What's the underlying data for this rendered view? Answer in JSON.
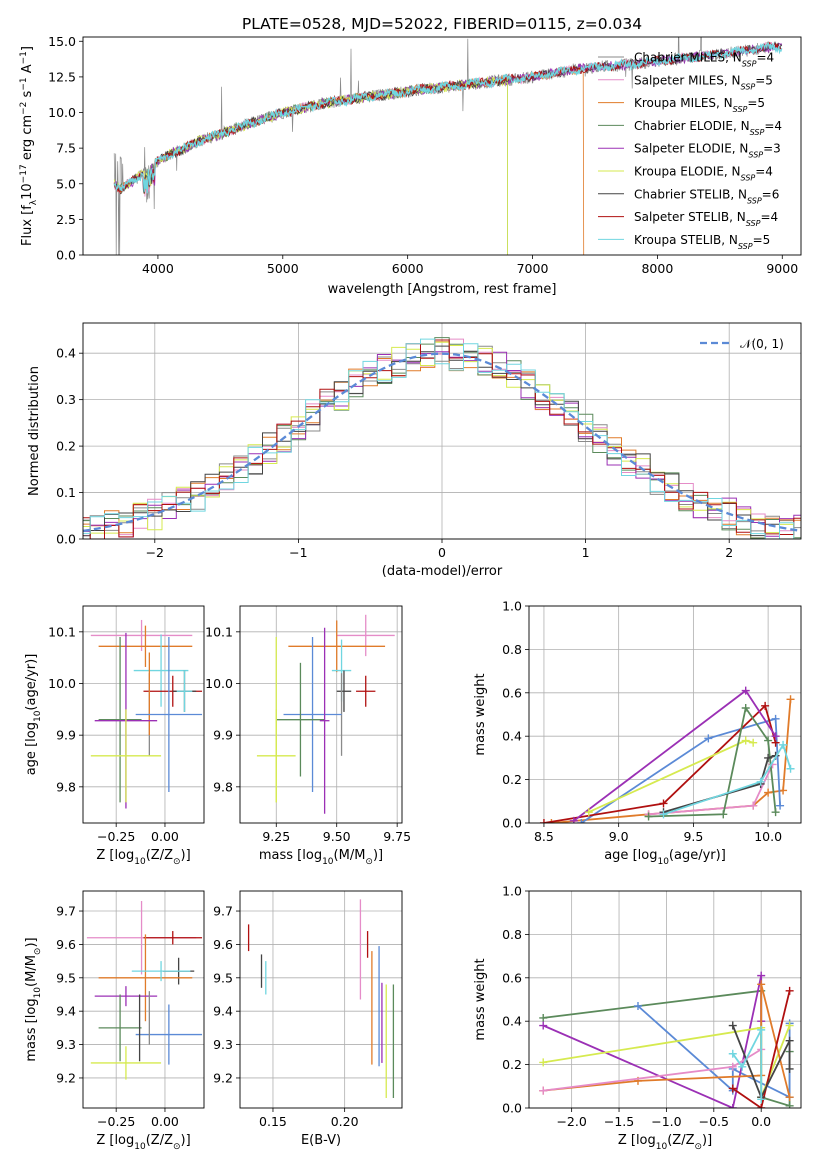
{
  "figure_title": "PLATE=0528, MJD=52022, FIBERID=0115, z=0.034",
  "colors": {
    "Chabrier MILES": "#8a8a8a",
    "Salpeter MILES": "#e58cc8",
    "Kroupa MILES": "#e07b2a",
    "Chabrier ELODIE": "#5b8a5b",
    "Salpeter ELODIE": "#9b30b5",
    "Kroupa ELODIE": "#d6ea4f",
    "Chabrier STELIB": "#444444",
    "Salpeter STELIB": "#b01010",
    "Kroupa STELIB": "#70d6e0",
    "gauss": "#5b8ad6",
    "mass_extra": "#5b8ad6"
  },
  "chart_data": [
    {
      "id": "spectrum",
      "type": "line",
      "xlabel": "wavelength [Angstrom, rest frame]",
      "ylabel": "Flux [f_λ10^-17 erg cm^-2 s^-1 A^-1]",
      "xlim": [
        3400,
        9150
      ],
      "ylim": [
        0,
        15.3
      ],
      "xticks": [
        4000,
        5000,
        6000,
        7000,
        8000,
        9000
      ],
      "yticks": [
        0.0,
        2.5,
        5.0,
        7.5,
        10.0,
        12.5,
        15.0
      ],
      "grid": false,
      "legend_position": "top-right",
      "legend": [
        {
          "name": "Chabrier MILES",
          "n_ssp": "4"
        },
        {
          "name": "Salpeter MILES",
          "n_ssp": "5"
        },
        {
          "name": "Kroupa MILES",
          "n_ssp": "5"
        },
        {
          "name": "Chabrier ELODIE",
          "n_ssp": "4"
        },
        {
          "name": "Salpeter ELODIE",
          "n_ssp": "3"
        },
        {
          "name": "Kroupa ELODIE",
          "n_ssp": "4"
        },
        {
          "name": "Chabrier STELIB",
          "n_ssp": "6"
        },
        {
          "name": "Salpeter STELIB",
          "n_ssp": "4"
        },
        {
          "name": "Kroupa STELIB",
          "n_ssp": "5"
        }
      ],
      "continuum": {
        "x": [
          3650,
          3700,
          3800,
          3900,
          4000,
          4100,
          4200,
          4300,
          4500,
          4700,
          5000,
          5300,
          5600,
          6000,
          6500,
          7000,
          7400,
          7800,
          8200,
          8600,
          8900
        ],
        "y": [
          5.0,
          4.6,
          5.2,
          5.9,
          6.6,
          7.1,
          7.4,
          7.9,
          8.5,
          9.1,
          10.0,
          10.6,
          11.0,
          11.5,
          12.0,
          12.5,
          13.1,
          13.4,
          13.8,
          14.2,
          14.6
        ]
      },
      "model_range": [
        3650,
        9000
      ],
      "truncated_models": [
        {
          "series": "Kroupa MILES",
          "x_end": 7410
        },
        {
          "series": "Kroupa ELODIE",
          "x_end": 6800
        },
        {
          "series": "Chabrier ELODIE",
          "x_end": 6800
        }
      ]
    },
    {
      "id": "residuals",
      "type": "histogram",
      "xlabel": "(data-model)/error",
      "ylabel": "Normed distribution",
      "xlim": [
        -2.5,
        2.5
      ],
      "ylim": [
        0,
        0.465
      ],
      "xticks": [
        -2,
        -1,
        0,
        1,
        2
      ],
      "yticks": [
        0.0,
        0.1,
        0.2,
        0.3,
        0.4
      ],
      "grid": true,
      "bin_width": 0.1,
      "legend_position": "top-right",
      "gaussian": {
        "label": "𝒩(0, 1)",
        "mean": 0,
        "sigma": 1
      },
      "scatter_amplitude": 0.035
    },
    {
      "id": "age_vs_Z",
      "type": "errorbar",
      "xlabel": "Z [log10(Z/Z☉)]",
      "ylabel": "age [log10(age/yr)]",
      "xlim": [
        -0.42,
        0.2
      ],
      "ylim": [
        9.73,
        10.15
      ],
      "xticks": [
        -0.25,
        0.0
      ],
      "yticks": [
        9.8,
        9.9,
        10.0,
        10.1
      ],
      "grid": true,
      "points": [
        {
          "series": "Salpeter MILES",
          "x": -0.12,
          "y": 10.093,
          "xerr": 0.26,
          "yerr": 0.03
        },
        {
          "series": "Kroupa MILES",
          "x": -0.1,
          "y": 10.072,
          "xerr": 0.24,
          "yerr": 0.04
        },
        {
          "series": "Kroupa STELIB",
          "x": -0.02,
          "y": 10.025,
          "xerr": 0.14,
          "yerr": 0.07
        },
        {
          "series": "Salpeter STELIB",
          "x": 0.04,
          "y": 9.985,
          "xerr": 0.15,
          "yerr": 0.03
        },
        {
          "series": "Chabrier STELIB",
          "x": 0.1,
          "y": 9.985,
          "xerr": 0.06,
          "yerr": 0.04
        },
        {
          "series": "Kroupa STELIB",
          "x": 0.1,
          "y": 9.985,
          "xerr": 0.04,
          "yerr": 0.04
        },
        {
          "series": "Chabrier MILES",
          "x": -0.08,
          "y": 9.94,
          "xerr": 0.0,
          "yerr": 0.08
        },
        {
          "series": "Kroupa MILES",
          "x": -0.08,
          "y": 9.98,
          "xerr": 0.0,
          "yerr": 0.08
        },
        {
          "series": "Chabrier ELODIE",
          "x": -0.23,
          "y": 9.93,
          "xerr": 0.11,
          "yerr": 0.16
        },
        {
          "series": "Salpeter ELODIE",
          "x": -0.2,
          "y": 9.928,
          "xerr": 0.16,
          "yerr": 0.17
        },
        {
          "series": "Kroupa ELODIE",
          "x": -0.2,
          "y": 9.86,
          "xerr": 0.18,
          "yerr": 0.09
        },
        {
          "series": "mass_extra",
          "x": 0.02,
          "y": 9.94,
          "xerr": 0.17,
          "yerr": 0.15
        }
      ]
    },
    {
      "id": "age_vs_mass",
      "type": "errorbar",
      "xlabel": "mass [log10(M/M☉)]",
      "ylabel": "",
      "xlim": [
        9.1,
        9.77
      ],
      "ylim": [
        9.73,
        10.15
      ],
      "xticks": [
        9.25,
        9.5,
        9.75
      ],
      "yticks": [
        9.8,
        9.9,
        10.0,
        10.1
      ],
      "grid": true,
      "points": [
        {
          "series": "Salpeter MILES",
          "x": 9.62,
          "y": 10.093,
          "xerr": 0.12,
          "yerr": 0.04
        },
        {
          "series": "Kroupa MILES",
          "x": 9.5,
          "y": 10.072,
          "xerr": 0.2,
          "yerr": 0.05
        },
        {
          "series": "Kroupa STELIB",
          "x": 9.52,
          "y": 10.025,
          "xerr": 0.04,
          "yerr": 0.06
        },
        {
          "series": "Salpeter STELIB",
          "x": 9.62,
          "y": 9.985,
          "xerr": 0.04,
          "yerr": 0.03
        },
        {
          "series": "Chabrier STELIB",
          "x": 9.53,
          "y": 9.985,
          "xerr": 0.03,
          "yerr": 0.04
        },
        {
          "series": "Chabrier MILES",
          "x": 9.52,
          "y": 9.94,
          "xerr": 0.0,
          "yerr": 0.08
        },
        {
          "series": "mass_extra",
          "x": 9.4,
          "y": 9.94,
          "xerr": 0.12,
          "yerr": 0.15
        },
        {
          "series": "Chabrier ELODIE",
          "x": 9.35,
          "y": 9.93,
          "xerr": 0.1,
          "yerr": 0.11
        },
        {
          "series": "Salpeter ELODIE",
          "x": 9.45,
          "y": 9.928,
          "xerr": 0.02,
          "yerr": 0.18
        },
        {
          "series": "Kroupa ELODIE",
          "x": 9.25,
          "y": 9.86,
          "xerr": 0.08,
          "yerr": 0.09
        },
        {
          "series": "Kroupa ELODIE",
          "x": 9.25,
          "y": 9.93,
          "xerr": 0.0,
          "yerr": 0.16
        }
      ]
    },
    {
      "id": "weight_vs_age",
      "type": "line",
      "xlabel": "age [log10(age/yr)]",
      "ylabel": "mass weight",
      "xlim": [
        8.4,
        10.22
      ],
      "ylim": [
        0,
        1.0
      ],
      "xticks": [
        8.5,
        9.0,
        9.5,
        10.0
      ],
      "yticks": [
        0.0,
        0.2,
        0.4,
        0.6,
        0.8,
        1.0
      ],
      "grid": true,
      "series": [
        {
          "name": "Kroupa MILES",
          "x": [
            8.55,
            9.2,
            9.9,
            10.0,
            10.1,
            10.15
          ],
          "y": [
            0.0,
            0.04,
            0.08,
            0.14,
            0.15,
            0.57
          ]
        },
        {
          "name": "Salpeter MILES",
          "x": [
            9.2,
            9.9,
            10.03
          ],
          "y": [
            0.04,
            0.08,
            0.27
          ]
        },
        {
          "name": "mass_extra",
          "x": [
            8.75,
            9.6,
            10.05,
            10.08
          ],
          "y": [
            0.0,
            0.39,
            0.48,
            0.08
          ]
        },
        {
          "name": "Salpeter STELIB",
          "x": [
            8.5,
            9.3,
            9.98,
            10.05
          ],
          "y": [
            0.0,
            0.09,
            0.54,
            0.37
          ]
        },
        {
          "name": "Salpeter ELODIE",
          "x": [
            8.7,
            9.85,
            10.05
          ],
          "y": [
            0.01,
            0.61,
            0.4
          ]
        },
        {
          "name": "Kroupa ELODIE",
          "x": [
            8.8,
            9.85,
            9.9
          ],
          "y": [
            0.05,
            0.38,
            0.37
          ]
        },
        {
          "name": "Chabrier ELODIE",
          "x": [
            9.2,
            9.7,
            9.85,
            10.0,
            10.05
          ],
          "y": [
            0.03,
            0.04,
            0.53,
            0.38,
            0.05
          ]
        },
        {
          "name": "Chabrier STELIB",
          "x": [
            9.3,
            9.95,
            10.0,
            10.05
          ],
          "y": [
            0.05,
            0.18,
            0.3,
            0.31
          ]
        },
        {
          "name": "Kroupa STELIB",
          "x": [
            9.3,
            9.95,
            10.1,
            10.15
          ],
          "y": [
            0.04,
            0.19,
            0.36,
            0.25
          ]
        }
      ]
    },
    {
      "id": "mass_vs_Z",
      "type": "errorbar",
      "xlabel": "Z [log10(Z/Z☉)]",
      "ylabel": "mass [log10(M/M☉)]",
      "xlim": [
        -0.42,
        0.2
      ],
      "ylim": [
        9.11,
        9.76
      ],
      "xticks": [
        -0.25,
        0.0
      ],
      "yticks": [
        9.2,
        9.3,
        9.4,
        9.5,
        9.6,
        9.7
      ],
      "grid": true,
      "points": [
        {
          "series": "Salpeter MILES",
          "x": -0.12,
          "y": 9.62,
          "xerr": 0.28,
          "yerr": 0.11
        },
        {
          "series": "Salpeter STELIB",
          "x": 0.04,
          "y": 9.62,
          "xerr": 0.15,
          "yerr": 0.02
        },
        {
          "series": "Chabrier STELIB",
          "x": 0.07,
          "y": 9.52,
          "xerr": 0.08,
          "yerr": 0.04
        },
        {
          "series": "Kroupa MILES",
          "x": -0.1,
          "y": 9.5,
          "xerr": 0.24,
          "yerr": 0.13
        },
        {
          "series": "Kroupa STELIB",
          "x": -0.02,
          "y": 9.52,
          "xerr": 0.15,
          "yerr": 0.03
        },
        {
          "series": "Salpeter ELODIE",
          "x": -0.2,
          "y": 9.445,
          "xerr": 0.16,
          "yerr": 0.03
        },
        {
          "series": "Chabrier ELODIE",
          "x": -0.23,
          "y": 9.35,
          "xerr": 0.11,
          "yerr": 0.1
        },
        {
          "series": "mass_extra",
          "x": 0.02,
          "y": 9.33,
          "xerr": 0.17,
          "yerr": 0.09
        },
        {
          "series": "Kroupa ELODIE",
          "x": -0.2,
          "y": 9.245,
          "xerr": 0.18,
          "yerr": 0.05
        },
        {
          "series": "Chabrier MILES",
          "x": -0.08,
          "y": 9.38,
          "xerr": 0.0,
          "yerr": 0.08
        },
        {
          "series": "Chabrier STELIB",
          "x": -0.13,
          "y": 9.35,
          "xerr": 0.0,
          "yerr": 0.1
        }
      ]
    },
    {
      "id": "mass_vs_ebv",
      "type": "errorbar",
      "xlabel": "E(B-V)",
      "ylabel": "",
      "xlim": [
        0.127,
        0.24
      ],
      "ylim": [
        9.11,
        9.76
      ],
      "xticks": [
        0.15,
        0.2
      ],
      "yticks": [
        9.2,
        9.3,
        9.4,
        9.5,
        9.6,
        9.7
      ],
      "grid": true,
      "points": [
        {
          "series": "Salpeter STELIB",
          "x": 0.133,
          "y": 9.62,
          "xerr": 0.0,
          "yerr": 0.04
        },
        {
          "series": "Chabrier STELIB",
          "x": 0.142,
          "y": 9.52,
          "xerr": 0.0,
          "yerr": 0.05
        },
        {
          "series": "Kroupa STELIB",
          "x": 0.145,
          "y": 9.5,
          "xerr": 0.0,
          "yerr": 0.05
        },
        {
          "series": "Salpeter MILES",
          "x": 0.211,
          "y": 9.585,
          "xerr": 0.0,
          "yerr": 0.15
        },
        {
          "series": "Salpeter STELIB",
          "x": 0.216,
          "y": 9.6,
          "xerr": 0.0,
          "yerr": 0.04
        },
        {
          "series": "Kroupa MILES",
          "x": 0.219,
          "y": 9.41,
          "xerr": 0.0,
          "yerr": 0.17
        },
        {
          "series": "mass_extra",
          "x": 0.224,
          "y": 9.415,
          "xerr": 0.0,
          "yerr": 0.18
        },
        {
          "series": "Salpeter ELODIE",
          "x": 0.226,
          "y": 9.365,
          "xerr": 0.0,
          "yerr": 0.12
        },
        {
          "series": "Kroupa ELODIE",
          "x": 0.229,
          "y": 9.31,
          "xerr": 0.0,
          "yerr": 0.17
        },
        {
          "series": "Chabrier ELODIE",
          "x": 0.234,
          "y": 9.31,
          "xerr": 0.0,
          "yerr": 0.17
        }
      ]
    },
    {
      "id": "weight_vs_Z",
      "type": "line",
      "xlabel": "Z [log10(Z/Z☉)]",
      "ylabel": "mass weight",
      "xlim": [
        -2.45,
        0.42
      ],
      "ylim": [
        0,
        1.0
      ],
      "xticks": [
        -2.0,
        -1.5,
        -1.0,
        -0.5,
        0.0
      ],
      "yticks": [
        0.0,
        0.2,
        0.4,
        0.6,
        0.8,
        1.0
      ],
      "grid": true,
      "series": [
        {
          "name": "Chabrier ELODIE",
          "x": [
            -2.3,
            0.0,
            0.0,
            0.3,
            0.3
          ],
          "y": [
            0.415,
            0.54,
            0.05,
            0.01,
            0.26
          ]
        },
        {
          "name": "mass_extra",
          "x": [
            -1.3,
            -0.3,
            -0.3,
            0.3,
            0.3
          ],
          "y": [
            0.47,
            0.08,
            0.18,
            0.05,
            0.39
          ]
        },
        {
          "name": "Salpeter ELODIE",
          "x": [
            -2.3,
            -0.3,
            0.0,
            0.0
          ],
          "y": [
            0.38,
            0.0,
            0.61,
            0.4
          ]
        },
        {
          "name": "Kroupa ELODIE",
          "x": [
            -2.3,
            0.0,
            0.0,
            0.3
          ],
          "y": [
            0.21,
            0.37,
            0.05,
            0.38
          ]
        },
        {
          "name": "Kroupa MILES",
          "x": [
            -2.3,
            -1.3,
            0.0,
            0.0,
            0.3
          ],
          "y": [
            0.08,
            0.125,
            0.15,
            0.57,
            0.05
          ]
        },
        {
          "name": "Salpeter MILES",
          "x": [
            -2.3,
            -0.3,
            0.0
          ],
          "y": [
            0.08,
            0.19,
            0.27
          ]
        },
        {
          "name": "Salpeter STELIB",
          "x": [
            -0.3,
            0.0,
            0.3
          ],
          "y": [
            0.09,
            0.0,
            0.54
          ]
        },
        {
          "name": "Chabrier STELIB",
          "x": [
            -0.3,
            0.0,
            0.3,
            0.3
          ],
          "y": [
            0.38,
            0.05,
            0.31,
            0.18
          ]
        },
        {
          "name": "Kroupa STELIB",
          "x": [
            -0.3,
            -0.2,
            0.0,
            0.0
          ],
          "y": [
            0.25,
            0.19,
            0.36,
            0.04
          ]
        }
      ]
    }
  ]
}
